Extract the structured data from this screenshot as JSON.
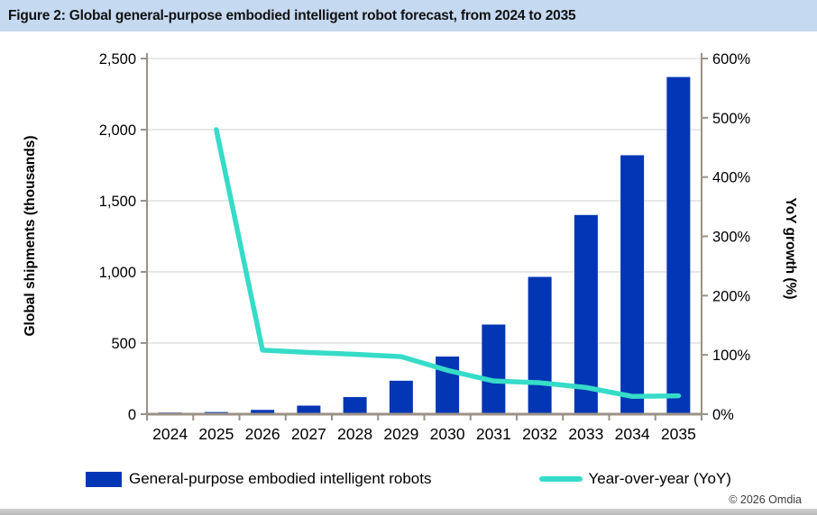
{
  "figure": {
    "title": "Figure 2: Global general-purpose embodied intelligent robot forecast, from 2024 to 2035",
    "copyright": "© 2026 Omdia"
  },
  "chart_data": {
    "type": "bar",
    "subtype": "bar-line-combo",
    "categories": [
      "2024",
      "2025",
      "2026",
      "2027",
      "2028",
      "2029",
      "2030",
      "2031",
      "2032",
      "2033",
      "2034",
      "2035"
    ],
    "series": [
      {
        "name": "General-purpose embodied intelligent robots",
        "type": "bar",
        "axis": "left",
        "color": "#0336b5",
        "values": [
          3,
          15,
          30,
          60,
          120,
          235,
          405,
          630,
          965,
          1400,
          1820,
          2370
        ]
      },
      {
        "name": "Year-over-year (YoY)",
        "type": "line",
        "axis": "right",
        "color": "#36dcc8",
        "values": [
          null,
          480,
          108,
          104,
          101,
          97,
          74,
          56,
          53,
          45,
          30,
          31
        ]
      }
    ],
    "left_axis": {
      "label": "Global shipments (thousands)",
      "min": 0,
      "max": 2500,
      "step": 500,
      "tick_labels": [
        "0",
        "500",
        "1,000",
        "1,500",
        "2,000",
        "2,500"
      ]
    },
    "right_axis": {
      "label": "YoY growth (%)",
      "min": 0,
      "max": 600,
      "step": 100,
      "tick_labels": [
        "0%",
        "100%",
        "200%",
        "300%",
        "400%",
        "500%",
        "600%"
      ]
    },
    "grid": "horizontal-left-axis-steps",
    "legend_position": "bottom",
    "colors": {
      "titlebar_bg": "#c5d9f1",
      "axis_line": "#9c9186",
      "gridline": "#e8e8e8",
      "text": "#000000"
    }
  }
}
